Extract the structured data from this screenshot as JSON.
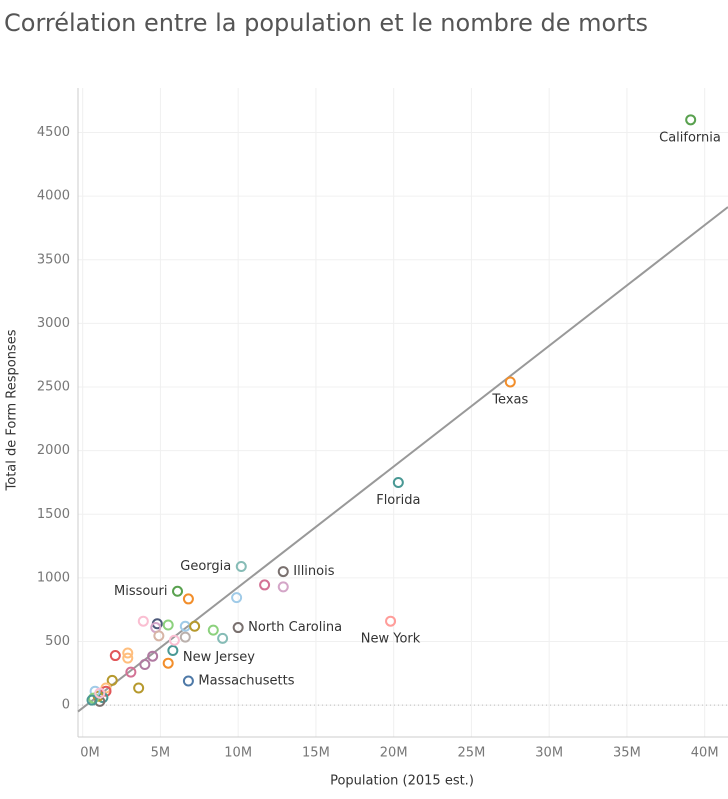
{
  "chart_data": {
    "type": "scatter",
    "title": "Corrélation entre la population et le nombre de morts",
    "x_label": "Population (2015 est.)",
    "y_label": "Total de Form Responses",
    "xlim": [
      -0.3,
      41.5
    ],
    "ylim": [
      -250,
      4850
    ],
    "xticks": [
      {
        "value": 0,
        "label": "0M"
      },
      {
        "value": 5,
        "label": "5M"
      },
      {
        "value": 10,
        "label": "10M"
      },
      {
        "value": 15,
        "label": "15M"
      },
      {
        "value": 20,
        "label": "20M"
      },
      {
        "value": 25,
        "label": "25M"
      },
      {
        "value": 30,
        "label": "30M"
      },
      {
        "value": 35,
        "label": "35M"
      },
      {
        "value": 40,
        "label": "40M"
      }
    ],
    "yticks": [
      0,
      500,
      1000,
      1500,
      2000,
      2500,
      3000,
      3500,
      4000,
      4500
    ],
    "grid": true,
    "trend_line": {
      "color": "#999999",
      "x": [
        -0.3,
        41.5
      ],
      "y": [
        -50,
        3915
      ]
    },
    "points": [
      {
        "label": "California",
        "x": 39.1,
        "y": 4600,
        "color": "#59a14f"
      },
      {
        "label": "Texas",
        "x": 27.5,
        "y": 2540,
        "color": "#f28e2b"
      },
      {
        "label": "Florida",
        "x": 20.3,
        "y": 1750,
        "color": "#499894"
      },
      {
        "label": "New York",
        "x": 19.8,
        "y": 660,
        "color": "#ff9d9a"
      },
      {
        "label": "Illinois",
        "x": 12.9,
        "y": 1050,
        "color": "#79706e"
      },
      {
        "label": "Georgia",
        "x": 10.2,
        "y": 1090,
        "color": "#86bcb6"
      },
      {
        "label": "North Carolina",
        "x": 10.0,
        "y": 610,
        "color": "#79706e"
      },
      {
        "label": "Missouri",
        "x": 6.1,
        "y": 895,
        "color": "#59a14f"
      },
      {
        "label": "New Jersey",
        "x": 5.8,
        "y": 430,
        "color": "#499894"
      },
      {
        "label": "Massachusetts",
        "x": 6.8,
        "y": 190,
        "color": "#4e79a7"
      },
      {
        "x": 6.8,
        "y": 835,
        "color": "#f28e2b"
      },
      {
        "x": 9.9,
        "y": 845,
        "color": "#a0cbe8"
      },
      {
        "x": 11.7,
        "y": 945,
        "color": "#d37295"
      },
      {
        "x": 12.9,
        "y": 930,
        "color": "#d4a6c8"
      },
      {
        "x": 3.9,
        "y": 660,
        "color": "#fabfd2"
      },
      {
        "x": 4.8,
        "y": 640,
        "color": "#4e5a7a"
      },
      {
        "x": 4.7,
        "y": 610,
        "color": "#d4a6c8"
      },
      {
        "x": 5.5,
        "y": 630,
        "color": "#8cd17d"
      },
      {
        "x": 6.6,
        "y": 620,
        "color": "#a0cbe8"
      },
      {
        "x": 7.2,
        "y": 620,
        "color": "#b6992d"
      },
      {
        "x": 8.4,
        "y": 590,
        "color": "#8cd17d"
      },
      {
        "x": 9.0,
        "y": 525,
        "color": "#86bcb6"
      },
      {
        "x": 4.9,
        "y": 545,
        "color": "#d7b5a6"
      },
      {
        "x": 6.6,
        "y": 535,
        "color": "#bab0ac"
      },
      {
        "x": 5.9,
        "y": 510,
        "color": "#fabfd2"
      },
      {
        "x": 2.1,
        "y": 390,
        "color": "#e15759"
      },
      {
        "x": 2.9,
        "y": 410,
        "color": "#ffbe7d"
      },
      {
        "x": 2.9,
        "y": 370,
        "color": "#ffbe7d"
      },
      {
        "x": 4.5,
        "y": 385,
        "color": "#b07aa1"
      },
      {
        "x": 4.0,
        "y": 320,
        "color": "#b07aa1"
      },
      {
        "x": 5.5,
        "y": 330,
        "color": "#f28e2b"
      },
      {
        "x": 3.1,
        "y": 260,
        "color": "#d37295"
      },
      {
        "x": 3.6,
        "y": 135,
        "color": "#b6992d"
      },
      {
        "x": 1.9,
        "y": 195,
        "color": "#b6992d"
      },
      {
        "x": 1.5,
        "y": 135,
        "color": "#ffbe7d"
      },
      {
        "x": 1.5,
        "y": 110,
        "color": "#e15759"
      },
      {
        "x": 1.3,
        "y": 60,
        "color": "#499894"
      },
      {
        "x": 1.0,
        "y": 70,
        "color": "#b6992d"
      },
      {
        "x": 0.8,
        "y": 110,
        "color": "#a0cbe8"
      },
      {
        "x": 0.7,
        "y": 55,
        "color": "#8cd17d"
      },
      {
        "x": 1.1,
        "y": 30,
        "color": "#79706e"
      },
      {
        "x": 0.6,
        "y": 40,
        "color": "#499894"
      },
      {
        "x": 1.1,
        "y": 95,
        "color": "#fabfd2"
      }
    ]
  }
}
